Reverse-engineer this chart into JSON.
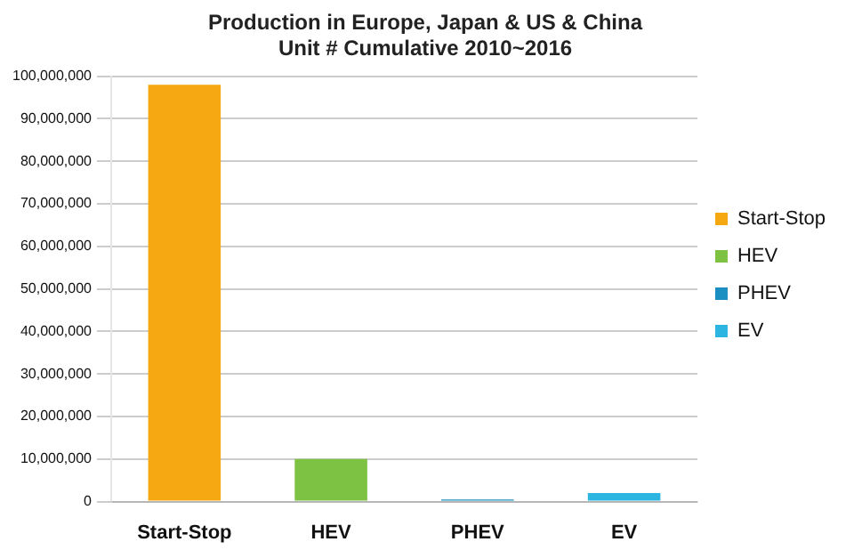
{
  "chart_data": {
    "type": "bar",
    "title": "Production in Europe, Japan & US & China",
    "subtitle": "Unit # Cumulative 2010~2016",
    "categories": [
      "Start-Stop",
      "HEV",
      "PHEV",
      "EV"
    ],
    "series": [
      {
        "name": "Start-Stop",
        "color": "#f5a811",
        "values": [
          98000000,
          null,
          null,
          null
        ]
      },
      {
        "name": "HEV",
        "color": "#7dc242",
        "values": [
          null,
          10000000,
          null,
          null
        ]
      },
      {
        "name": "PHEV",
        "color": "#1b8fc2",
        "values": [
          null,
          null,
          500000,
          null
        ]
      },
      {
        "name": "EV",
        "color": "#2cb5e0",
        "values": [
          null,
          null,
          null,
          2000000
        ]
      }
    ],
    "ylim": [
      0,
      100000000
    ],
    "yticks": [
      0,
      {
        "value": 10000000,
        "label": "10,000,000"
      },
      {
        "value": 20000000,
        "label": "20,000,000"
      },
      {
        "value": 30000000,
        "label": "30,000,000"
      },
      {
        "value": 40000000,
        "label": "40,000,000"
      },
      {
        "value": 50000000,
        "label": "50,000,000"
      },
      {
        "value": 60000000,
        "label": "60,000,000"
      },
      {
        "value": 70000000,
        "label": "70,000,000"
      },
      {
        "value": 80000000,
        "label": "80,000,000"
      },
      {
        "value": 90000000,
        "label": "90,000,000"
      },
      {
        "value": 100000000,
        "label": "100,000,000"
      }
    ],
    "grid": "y",
    "legend": "right"
  }
}
